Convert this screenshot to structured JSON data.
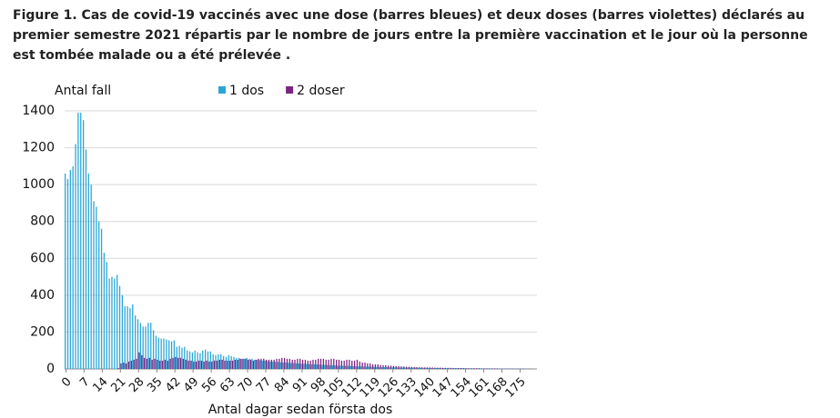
{
  "chart_data": {
    "type": "bar",
    "title": "Figure 1. Cas de covid-19 vaccinés avec une dose (barres bleues) et deux doses (barres violettes) déclarés au premier semestre 2021  répartis par le nombre de jours entre la première vaccination et le jour où la personne est tombée malade ou a été prélevée .",
    "y_label": "Antal fall",
    "x_label": "Antal dagar sedan första dos",
    "x": [
      0,
      1,
      2,
      3,
      4,
      5,
      6,
      7,
      8,
      9,
      10,
      11,
      12,
      13,
      14,
      15,
      16,
      17,
      18,
      19,
      20,
      21,
      22,
      23,
      24,
      25,
      26,
      27,
      28,
      29,
      30,
      31,
      32,
      33,
      34,
      35,
      36,
      37,
      38,
      39,
      40,
      41,
      42,
      43,
      44,
      45,
      46,
      47,
      48,
      49,
      50,
      51,
      52,
      53,
      54,
      55,
      56,
      57,
      58,
      59,
      60,
      61,
      62,
      63,
      64,
      65,
      66,
      67,
      68,
      69,
      70,
      71,
      72,
      73,
      74,
      75,
      76,
      77,
      78,
      79,
      80,
      81,
      82,
      83,
      84,
      85,
      86,
      87,
      88,
      89,
      90,
      91,
      92,
      93,
      94,
      95,
      96,
      97,
      98,
      99,
      100,
      101,
      102,
      103,
      104,
      105,
      106,
      107,
      108,
      109,
      110,
      111,
      112,
      113,
      114,
      115,
      116,
      117,
      118,
      119,
      120,
      121,
      122,
      123,
      124,
      125,
      126,
      127,
      128,
      129,
      130,
      131,
      132,
      133,
      134,
      135,
      136,
      137,
      138,
      139,
      140,
      141,
      142,
      143,
      144,
      145,
      146,
      147,
      148,
      149,
      150,
      151,
      152,
      153,
      154,
      155,
      156,
      157,
      158,
      159,
      160,
      161,
      162,
      163,
      164,
      165,
      166,
      167,
      168,
      169,
      170,
      171,
      172,
      173,
      174,
      175,
      176,
      177,
      178,
      179
    ],
    "series": [
      {
        "name": "1 dos",
        "color": "#2aa6d6",
        "values": [
          1060,
          1030,
          1080,
          1100,
          1220,
          1390,
          1390,
          1350,
          1190,
          1060,
          1000,
          910,
          880,
          800,
          760,
          630,
          580,
          490,
          500,
          490,
          510,
          450,
          400,
          340,
          340,
          330,
          350,
          290,
          270,
          250,
          230,
          230,
          250,
          250,
          210,
          180,
          170,
          165,
          165,
          160,
          155,
          150,
          155,
          120,
          125,
          115,
          120,
          100,
          95,
          90,
          100,
          90,
          85,
          100,
          105,
          95,
          95,
          80,
          75,
          80,
          80,
          70,
          65,
          75,
          70,
          65,
          60,
          60,
          55,
          55,
          60,
          55,
          55,
          50,
          50,
          48,
          45,
          45,
          42,
          40,
          40,
          38,
          38,
          36,
          35,
          35,
          33,
          32,
          32,
          30,
          30,
          28,
          28,
          27,
          26,
          25,
          25,
          24,
          24,
          22,
          22,
          21,
          20,
          20,
          19,
          18,
          18,
          17,
          17,
          16,
          16,
          15,
          15,
          14,
          14,
          13,
          13,
          12,
          12,
          12,
          11,
          11,
          10,
          10,
          10,
          9,
          9,
          9,
          8,
          8,
          8,
          8,
          7,
          7,
          7,
          7,
          6,
          6,
          6,
          6,
          6,
          5,
          5,
          5,
          5,
          5,
          5,
          4,
          4,
          4,
          4,
          4,
          4,
          4,
          4,
          3,
          3,
          3,
          3,
          3,
          3,
          3,
          3,
          3,
          3,
          2,
          2,
          2,
          2,
          2,
          2,
          2,
          2,
          2,
          2,
          2,
          2,
          2,
          1,
          1
        ]
      },
      {
        "name": "2 doser",
        "color": "#7b2482",
        "values": [
          0,
          0,
          0,
          0,
          0,
          0,
          0,
          0,
          0,
          0,
          0,
          0,
          0,
          0,
          0,
          0,
          0,
          0,
          0,
          0,
          5,
          30,
          35,
          30,
          40,
          45,
          50,
          55,
          90,
          75,
          60,
          55,
          60,
          50,
          55,
          50,
          45,
          45,
          50,
          45,
          55,
          60,
          65,
          60,
          60,
          55,
          50,
          45,
          45,
          40,
          40,
          45,
          45,
          40,
          45,
          40,
          40,
          45,
          45,
          50,
          50,
          45,
          45,
          45,
          45,
          50,
          50,
          55,
          55,
          55,
          50,
          50,
          45,
          50,
          55,
          55,
          55,
          50,
          50,
          50,
          50,
          55,
          55,
          60,
          60,
          55,
          55,
          50,
          50,
          55,
          55,
          50,
          50,
          45,
          45,
          50,
          50,
          55,
          55,
          55,
          50,
          50,
          55,
          55,
          50,
          50,
          45,
          45,
          50,
          50,
          45,
          45,
          50,
          40,
          35,
          35,
          30,
          30,
          25,
          25,
          25,
          22,
          20,
          20,
          18,
          18,
          16,
          15,
          15,
          14,
          13,
          12,
          12,
          11,
          10,
          10,
          9,
          9,
          8,
          8,
          8,
          8,
          7,
          7,
          7,
          6,
          6,
          6,
          6,
          5,
          5,
          5,
          5,
          5,
          4,
          4,
          4,
          4,
          4,
          4,
          3,
          3,
          3,
          3,
          3,
          3,
          3,
          2,
          2,
          2,
          2,
          2,
          2,
          2,
          2,
          2,
          2,
          1,
          1,
          1
        ]
      }
    ],
    "xlim": [
      -0.5,
      181.5
    ],
    "xticks": [
      0,
      7,
      14,
      21,
      28,
      35,
      42,
      49,
      56,
      63,
      70,
      77,
      84,
      91,
      98,
      105,
      112,
      119,
      126,
      133,
      140,
      147,
      154,
      161,
      168,
      175
    ],
    "ylim": [
      0,
      1400
    ],
    "yticks": [
      0,
      200,
      400,
      600,
      800,
      1000,
      1200,
      1400
    ],
    "grid": true
  }
}
